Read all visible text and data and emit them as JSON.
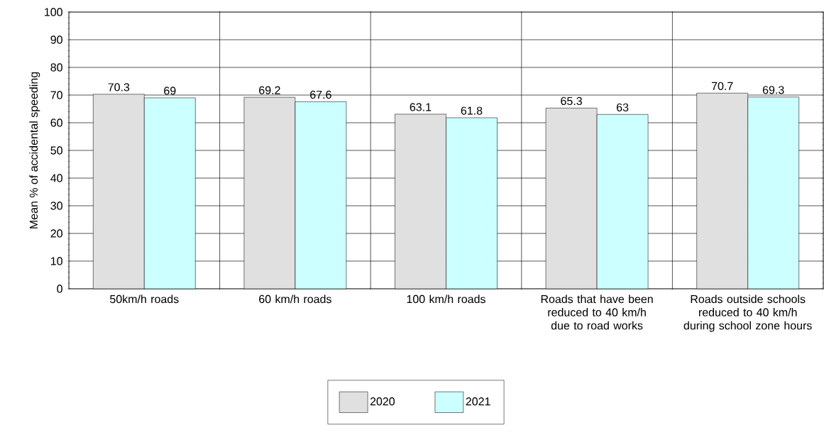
{
  "chart_data": {
    "type": "bar",
    "ylabel": "Mean % of accidental speeding",
    "categories": [
      "50km/h roads",
      "60 km/h roads",
      "100 km/h roads",
      "Roads that have been reduced to 40 km/h due to road works",
      "Roads outside schools reduced to 40 km/h during school zone hours"
    ],
    "series": [
      {
        "name": "2020",
        "color": "#e0e0e0",
        "values": [
          70.3,
          69.2,
          63.1,
          65.3,
          70.7
        ]
      },
      {
        "name": "2021",
        "color": "#ccffff",
        "values": [
          69,
          67.6,
          61.8,
          63,
          69.3
        ]
      }
    ],
    "ylim": [
      0,
      100
    ],
    "yticks": [
      0,
      10,
      20,
      30,
      40,
      50,
      60,
      70,
      80,
      90,
      100
    ],
    "grid": true,
    "legend": "bottom",
    "data_labels": true
  }
}
